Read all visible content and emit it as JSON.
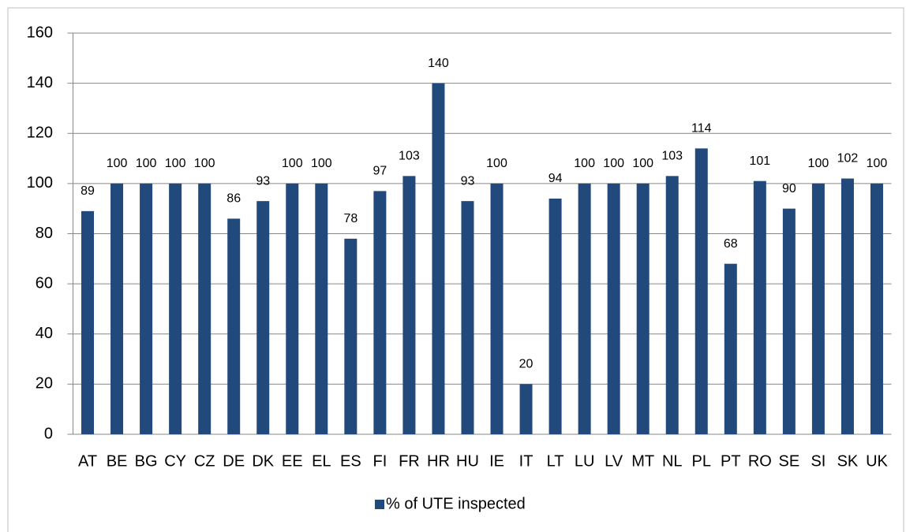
{
  "chart_data": {
    "type": "bar",
    "categories": [
      "AT",
      "BE",
      "BG",
      "CY",
      "CZ",
      "DE",
      "DK",
      "EE",
      "EL",
      "ES",
      "FI",
      "FR",
      "HR",
      "HU",
      "IE",
      "IT",
      "LT",
      "LU",
      "LV",
      "MT",
      "NL",
      "PL",
      "PT",
      "RO",
      "SE",
      "SI",
      "SK",
      "UK"
    ],
    "series": [
      {
        "name": "% of UTE inspected",
        "color": "#22497c",
        "values": [
          89,
          100,
          100,
          100,
          100,
          86,
          93,
          100,
          100,
          78,
          97,
          103,
          140,
          93,
          100,
          20,
          94,
          100,
          100,
          100,
          103,
          114,
          68,
          101,
          90,
          100,
          102,
          100
        ]
      }
    ],
    "ylim": [
      0,
      160
    ],
    "yticks": [
      0,
      20,
      40,
      60,
      80,
      100,
      120,
      140,
      160
    ],
    "grid": true,
    "legend": "bottom"
  }
}
